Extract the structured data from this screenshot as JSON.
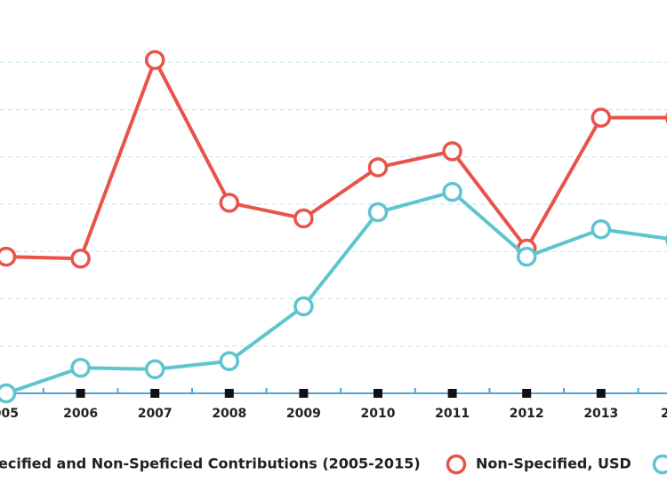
{
  "chart_data": {
    "type": "line",
    "categories": [
      "005",
      "2006",
      "2007",
      "2008",
      "2009",
      "2010",
      "2011",
      "2012",
      "2013",
      "2"
    ],
    "series": [
      {
        "name": "Non-Specified, USD",
        "color": "#e8534a",
        "values": [
          2.89,
          2.85,
          7.05,
          4.03,
          3.7,
          4.78,
          5.12,
          3.06,
          5.83,
          5.83
        ]
      },
      {
        "color": "#5ec4d0",
        "values": [
          0,
          0.54,
          0.51,
          0.68,
          1.84,
          3.83,
          4.26,
          2.89,
          3.47,
          3.25
        ]
      }
    ],
    "legend_title": "ecified and Non-Speficied Contributions (2005-2015)",
    "ylim": [
      0,
      8
    ],
    "yticks": [
      1,
      2,
      3,
      4,
      5,
      6,
      7
    ],
    "grid": true
  }
}
